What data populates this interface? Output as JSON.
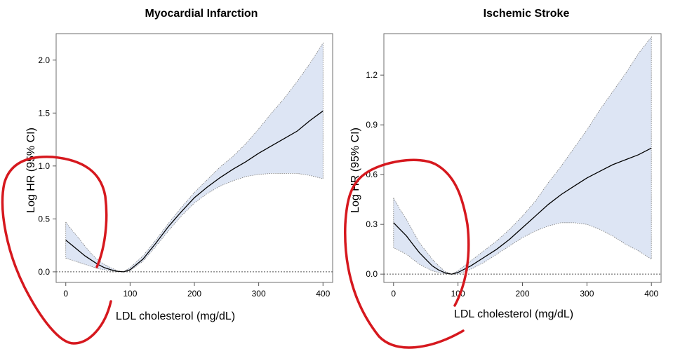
{
  "chart_data": [
    {
      "type": "line",
      "title": "Myocardial Infarction",
      "xlabel": "LDL cholesterol (mg/dL)",
      "ylabel": "Log HR (95% CI)",
      "xlim": [
        -15,
        415
      ],
      "ylim": [
        -0.1,
        2.25
      ],
      "xticks": [
        0,
        100,
        200,
        300,
        400
      ],
      "yticks": [
        0.0,
        0.5,
        1.0,
        1.5,
        2.0
      ],
      "ytick_labels": [
        "0.0",
        "0.5",
        "1.0",
        "1.5",
        "2.0"
      ],
      "reference_line_y": 0,
      "series": [
        {
          "x": [
            0,
            10,
            20,
            30,
            40,
            50,
            60,
            70,
            80,
            90,
            100,
            120,
            140,
            160,
            180,
            200,
            220,
            240,
            260,
            280,
            300,
            320,
            340,
            360,
            380,
            400
          ],
          "estimate": [
            0.3,
            0.25,
            0.2,
            0.15,
            0.11,
            0.07,
            0.04,
            0.02,
            0.005,
            0.0,
            0.02,
            0.12,
            0.27,
            0.43,
            0.57,
            0.7,
            0.8,
            0.89,
            0.97,
            1.04,
            1.12,
            1.19,
            1.26,
            1.33,
            1.43,
            1.52
          ],
          "lower": [
            0.13,
            0.11,
            0.09,
            0.07,
            0.05,
            0.03,
            0.02,
            0.01,
            0.002,
            0.0,
            0.01,
            0.1,
            0.24,
            0.39,
            0.53,
            0.65,
            0.74,
            0.81,
            0.86,
            0.9,
            0.92,
            0.93,
            0.93,
            0.93,
            0.91,
            0.88
          ],
          "upper": [
            0.47,
            0.39,
            0.32,
            0.24,
            0.17,
            0.11,
            0.07,
            0.04,
            0.01,
            0.0,
            0.04,
            0.15,
            0.3,
            0.46,
            0.61,
            0.75,
            0.87,
            0.99,
            1.09,
            1.21,
            1.35,
            1.5,
            1.64,
            1.8,
            1.97,
            2.16
          ]
        }
      ]
    },
    {
      "type": "line",
      "title": "Ischemic Stroke",
      "xlabel": "LDL cholesterol (mg/dL)",
      "ylabel": "Log HR (95% CI)",
      "xlim": [
        -15,
        415
      ],
      "ylim": [
        -0.05,
        1.45
      ],
      "xticks": [
        0,
        100,
        200,
        300,
        400
      ],
      "yticks": [
        0.0,
        0.3,
        0.6,
        0.9,
        1.2
      ],
      "ytick_labels": [
        "0.0",
        "0.3",
        "0.6",
        "0.9",
        "1.2"
      ],
      "reference_line_y": 0,
      "series": [
        {
          "x": [
            0,
            10,
            20,
            30,
            40,
            50,
            60,
            70,
            80,
            90,
            100,
            120,
            140,
            160,
            180,
            200,
            220,
            240,
            260,
            280,
            300,
            320,
            340,
            360,
            380,
            400
          ],
          "estimate": [
            0.31,
            0.27,
            0.23,
            0.18,
            0.13,
            0.09,
            0.05,
            0.025,
            0.008,
            0.0,
            0.01,
            0.05,
            0.1,
            0.15,
            0.21,
            0.28,
            0.35,
            0.42,
            0.48,
            0.53,
            0.58,
            0.62,
            0.66,
            0.69,
            0.72,
            0.76
          ],
          "lower": [
            0.16,
            0.14,
            0.12,
            0.09,
            0.06,
            0.04,
            0.02,
            0.01,
            0.003,
            0.0,
            0.0,
            0.03,
            0.07,
            0.12,
            0.17,
            0.22,
            0.26,
            0.29,
            0.31,
            0.31,
            0.3,
            0.27,
            0.23,
            0.18,
            0.14,
            0.09
          ],
          "upper": [
            0.46,
            0.39,
            0.33,
            0.26,
            0.19,
            0.14,
            0.09,
            0.05,
            0.015,
            0.0,
            0.02,
            0.08,
            0.14,
            0.2,
            0.27,
            0.35,
            0.44,
            0.55,
            0.65,
            0.76,
            0.87,
            0.99,
            1.1,
            1.21,
            1.33,
            1.43
          ]
        }
      ]
    }
  ],
  "annotation": {
    "color": "#d6181e",
    "description_icon": "red-hand-drawn-circle"
  }
}
